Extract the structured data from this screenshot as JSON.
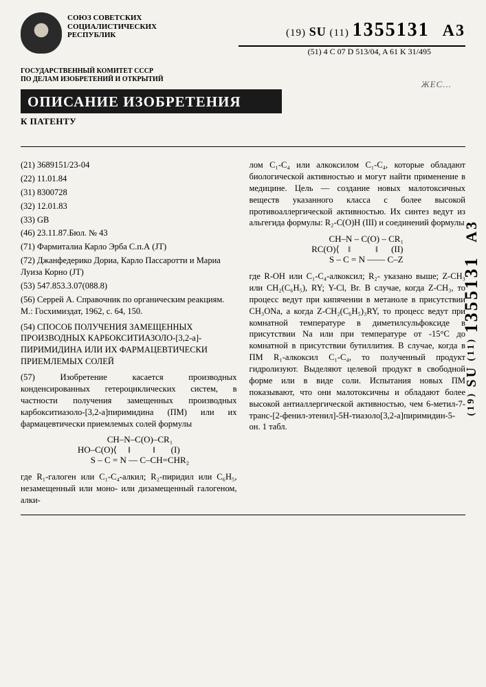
{
  "header": {
    "union_line1": "СОЮЗ СОВЕТСКИХ",
    "union_line2": "СОЦИАЛИСТИЧЕСКИХ",
    "union_line3": "РЕСПУБЛИК",
    "committee_line1": "ГОСУДАРСТВЕННЫЙ КОМИТЕТ СССР",
    "committee_line2": "ПО ДЕЛАМ ИЗОБРЕТЕНИЙ И ОТКРЫТИЙ",
    "patent_prefix_19": "(19)",
    "patent_su": "SU",
    "patent_prefix_11": "(11)",
    "patent_number": "1355131",
    "patent_suffix": "A3",
    "classification_prefix": "(51) 4",
    "classification": "C 07 D 513/04, A 61 K 31/495",
    "title": "ОПИСАНИЕ ИЗОБРЕТЕНИЯ",
    "subtitle": "К ПАТЕНТУ",
    "stamp": "ЖЕС..."
  },
  "biblio": {
    "f21": "(21) 3689151/23-04",
    "f22": "(22) 11.01.84",
    "f31": "(31) 8300728",
    "f32": "(32) 12.01.83",
    "f33": "(33) GB",
    "f46": "(46) 23.11.87.Бюл. № 43",
    "f71": "(71) Фармиталиа Карло Эрба С.п.А (JT)",
    "f72": "(72) Джанфедерико Дориа, Карло Пассаротти и Мариа Луиза Корно (JT)",
    "f53": "(53) 547.853.3.07(088.8)",
    "f56": "(56) Серрей А. Справочник по органическим реакциям. М.: Госхимиздат, 1962, с. 64, 150.",
    "f54": "(54) СПОСОБ ПОЛУЧЕНИЯ ЗАМЕЩЕННЫХ ПРОИЗВОДНЫХ КАРБОКСИТИАЗОЛО-[3,2-a]-ПИРИМИДИНА ИЛИ ИХ ФАРМАЦЕВТИЧЕСКИ ПРИЕМЛЕМЫХ СОЛЕЙ"
  },
  "abstract": {
    "p1": "(57) Изобретение касается производных конденсированных гетероциклических систем, в частности получения замещенных производных карбокситиазоло-[3,2-а]пиримидина (ПМ) или их фармацевтически приемлемых солей формулы",
    "formula1": "          CH–N–C(O)–CR₁\nHO–C(O)⟨     ‖          ‖       (I)\n          S – C = N — C–CH=CHR₂",
    "p2": "где R₁-галоген или C₁-C₄-алкил; R₂-пиридил или C₆H₅, незамещенный или моно- или дизамещенный галогеном, алки-",
    "p3": "лом C₁-C₄ или алкоксилом C₁-C₄, которые обладают биологической активностью и могут найти применение в медицине. Цель — создание новых малотоксичных веществ указанного класса с более высокой противоаллергической активностью. Их синтез ведут из альгегида формулы: R₂-C(O)H (III) и соединений формулы",
    "formula2": "        CH–N – C(O) – CR₁\nRC(O)⟨    ‖           ‖      (II)\n        S – C = N —— C–Z",
    "p4": "где R-OH или C₁-C₄-алкоксил; R₂- указано выше; Z-CH₃ или CH₂(C₆H₅), RY; Y-Cl, Br. В случае, когда Z-CH₃, то процесс ведут при кипячении в метаноле в присутствии CH₃ONa, а когда Z-CH₂(C₆H₅)₃RY, то процесс ведут при комнатной температуре в диметилсульфоксиде в присутствии Na или при температуре от -15°C до комнатной в присутствии бутиллития. В случае, когда в ПМ R₁-алкоксил C₁-C₄, то полученный продукт гидролизуют. Выделяют целевой продукт в свободной форме или в виде соли. Испытания новых ПМ показывают, что они малотоксичны и обладают более высокой антиаллергической активностью, чем 6-метил-7-транс-[2-фенил-этенил]-5H-тиазоло[3,2-а]пиримидин-5-он. 1 табл."
  },
  "sidebar": {
    "prefix19": "(19)",
    "su": "SU",
    "prefix11": "(11)",
    "number": "1355131",
    "suffix": "A3"
  }
}
